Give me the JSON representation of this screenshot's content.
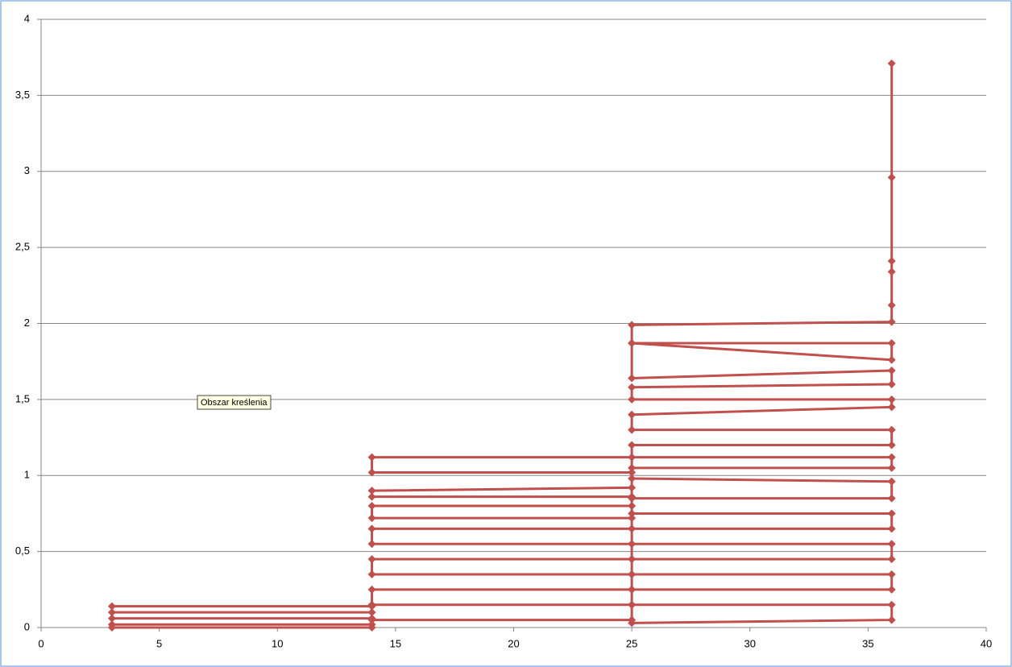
{
  "chart_data": {
    "type": "scatter_line",
    "tooltip": "Obszar kreślenia",
    "series": [
      {
        "name": null,
        "color": "#c0504d",
        "x": [
          3,
          14,
          14,
          3,
          3,
          14,
          14,
          3,
          3,
          14,
          14,
          25,
          25,
          14,
          14,
          25,
          25,
          14,
          14,
          25,
          25,
          14,
          14,
          25,
          25,
          14,
          14,
          25,
          25,
          14,
          14,
          25,
          25,
          14,
          14,
          25,
          36,
          36,
          25,
          25,
          36,
          36,
          25,
          25,
          36,
          36,
          25,
          25,
          36,
          36,
          25,
          25,
          36,
          36,
          25,
          25,
          36,
          36,
          25,
          25,
          36,
          36,
          25,
          25,
          36,
          36,
          25,
          25,
          36,
          36,
          25,
          25,
          36,
          36,
          25,
          25,
          36,
          36,
          36,
          36,
          36,
          36
        ],
        "values": [
          0.14,
          0.14,
          0.1,
          0.1,
          0.06,
          0.06,
          0.02,
          0.02,
          0.0,
          0.0,
          0.05,
          0.05,
          0.15,
          0.15,
          0.25,
          0.25,
          0.35,
          0.35,
          0.45,
          0.45,
          0.55,
          0.55,
          0.65,
          0.65,
          0.72,
          0.72,
          0.8,
          0.8,
          0.86,
          0.86,
          0.9,
          0.92,
          1.02,
          1.02,
          1.12,
          1.12,
          1.12,
          1.05,
          1.05,
          0.98,
          0.96,
          0.85,
          0.85,
          0.75,
          0.75,
          0.65,
          0.65,
          0.55,
          0.55,
          0.45,
          0.45,
          0.35,
          0.35,
          0.25,
          0.25,
          0.15,
          0.15,
          0.05,
          0.03,
          1.2,
          1.2,
          1.3,
          1.3,
          1.4,
          1.45,
          1.5,
          1.5,
          1.58,
          1.6,
          1.69,
          1.64,
          1.87,
          1.76,
          1.87,
          1.87,
          1.99,
          2.01,
          2.12,
          2.34,
          2.41,
          2.96,
          3.71
        ]
      }
    ],
    "xlim": [
      0,
      40
    ],
    "xticks": [
      0,
      5,
      10,
      15,
      20,
      25,
      30,
      35,
      40
    ],
    "ylim": [
      0,
      4
    ],
    "yticks": [
      0,
      {
        "value": 0.5,
        "label": "0,5"
      },
      1,
      {
        "value": 1.5,
        "label": "1,5"
      },
      2,
      {
        "value": 2.5,
        "label": "2,5"
      },
      3,
      {
        "value": 3.5,
        "label": "3,5"
      },
      4
    ],
    "grid": true
  }
}
